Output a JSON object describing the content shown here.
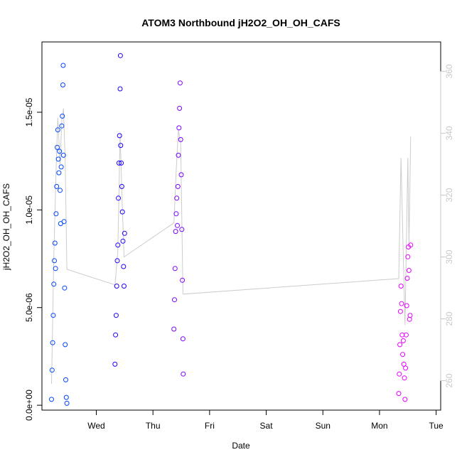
{
  "chart_data": {
    "type": "scatter",
    "title": "ATOM3 Northbound jH2O2_OH_OH_CAFS",
    "xlabel": "Date",
    "ylabel": "jH2O2_OH_OH_CAFS",
    "x_ticks": [
      "Wed",
      "Thu",
      "Fri",
      "Sat",
      "Sun",
      "Mon",
      "Tue"
    ],
    "x_tick_days": [
      1,
      2,
      3,
      4,
      5,
      6,
      7
    ],
    "xlim_days": [
      0.04,
      7.08
    ],
    "ylim": [
      -2.5e-07,
      1.86e-05
    ],
    "y_ticks": [
      0,
      5e-06,
      1e-05,
      1.5e-05
    ],
    "y_tick_labels": [
      "0.0e+00",
      "5.0e-06",
      "1.0e-05",
      "1.5e-05"
    ],
    "y2_ticks": [
      260,
      280,
      300,
      320,
      340,
      360
    ],
    "y2_lim": [
      250.5,
      369.5
    ],
    "y2_color": "#c8c8c8",
    "grid": false,
    "series": [
      {
        "color": "#0044ff",
        "points": [
          [
            0.21,
            3e-07
          ],
          [
            0.22,
            1.8e-06
          ],
          [
            0.23,
            3.2e-06
          ],
          [
            0.24,
            4.6e-06
          ],
          [
            0.25,
            6.2e-06
          ],
          [
            0.26,
            7.4e-06
          ],
          [
            0.27,
            8.3e-06
          ],
          [
            0.28,
            7e-06
          ],
          [
            0.29,
            9.8e-06
          ],
          [
            0.3,
            1.12e-05
          ],
          [
            0.31,
            1.32e-05
          ],
          [
            0.32,
            1.41e-05
          ],
          [
            0.33,
            1.26e-05
          ],
          [
            0.34,
            1.19e-05
          ],
          [
            0.35,
            1.3e-05
          ],
          [
            0.36,
            1.1e-05
          ],
          [
            0.37,
            9.3e-06
          ],
          [
            0.38,
            1.22e-05
          ],
          [
            0.39,
            1.43e-05
          ],
          [
            0.4,
            1.48e-05
          ],
          [
            0.41,
            1.64e-05
          ],
          [
            0.415,
            1.74e-05
          ],
          [
            0.42,
            1.28e-05
          ],
          [
            0.43,
            9.4e-06
          ],
          [
            0.44,
            6e-06
          ],
          [
            0.45,
            3.1e-06
          ],
          [
            0.46,
            1.3e-06
          ],
          [
            0.47,
            4e-07
          ],
          [
            0.48,
            1e-07
          ]
        ]
      },
      {
        "color": "#1a00ff",
        "points": [
          [
            1.33,
            2.1e-06
          ],
          [
            1.34,
            3.6e-06
          ],
          [
            1.35,
            4.6e-06
          ],
          [
            1.36,
            6.1e-06
          ],
          [
            1.37,
            7.4e-06
          ],
          [
            1.38,
            8.2e-06
          ],
          [
            1.39,
            1.06e-05
          ],
          [
            1.4,
            1.24e-05
          ],
          [
            1.41,
            1.38e-05
          ],
          [
            1.42,
            1.62e-05
          ],
          [
            1.425,
            1.79e-05
          ],
          [
            1.43,
            1.33e-05
          ],
          [
            1.44,
            1.24e-05
          ],
          [
            1.45,
            1.12e-05
          ],
          [
            1.46,
            9.9e-06
          ],
          [
            1.47,
            8.4e-06
          ],
          [
            1.48,
            7.1e-06
          ],
          [
            1.49,
            6.1e-06
          ],
          [
            1.5,
            8.8e-06
          ]
        ]
      },
      {
        "color": "#7a00ff",
        "points": [
          [
            2.37,
            3.9e-06
          ],
          [
            2.38,
            5.4e-06
          ],
          [
            2.39,
            7e-06
          ],
          [
            2.4,
            8.9e-06
          ],
          [
            2.41,
            9.8e-06
          ],
          [
            2.42,
            1.06e-05
          ],
          [
            2.43,
            9.2e-06
          ],
          [
            2.44,
            1.12e-05
          ],
          [
            2.45,
            1.28e-05
          ],
          [
            2.46,
            1.42e-05
          ],
          [
            2.47,
            1.52e-05
          ],
          [
            2.48,
            1.65e-05
          ],
          [
            2.49,
            1.36e-05
          ],
          [
            2.5,
            1.18e-05
          ],
          [
            2.51,
            9e-06
          ],
          [
            2.52,
            6.4e-06
          ],
          [
            2.53,
            3.4e-06
          ],
          [
            2.535,
            1.6e-06
          ]
        ]
      },
      {
        "color": "#e600ff",
        "points": [
          [
            6.34,
            6e-07
          ],
          [
            6.35,
            1.6e-06
          ],
          [
            6.36,
            3.1e-06
          ],
          [
            6.37,
            4.8e-06
          ],
          [
            6.38,
            6.1e-06
          ],
          [
            6.39,
            5.2e-06
          ],
          [
            6.4,
            3.6e-06
          ],
          [
            6.41,
            2.6e-06
          ],
          [
            6.42,
            3.3e-06
          ],
          [
            6.43,
            2.1e-06
          ],
          [
            6.44,
            1.4e-06
          ],
          [
            6.45,
            3e-07
          ],
          [
            6.46,
            1.9e-06
          ],
          [
            6.47,
            3.6e-06
          ],
          [
            6.48,
            5.1e-06
          ],
          [
            6.49,
            6.5e-06
          ],
          [
            6.5,
            7.6e-06
          ],
          [
            6.51,
            8.1e-06
          ],
          [
            6.52,
            6.9e-06
          ],
          [
            6.53,
            4.4e-06
          ],
          [
            6.54,
            4.6e-06
          ],
          [
            6.55,
            8.2e-06
          ]
        ]
      }
    ],
    "secondary_line": {
      "color": "#cccccc",
      "points": [
        [
          0.21,
          259
        ],
        [
          0.25,
          300
        ],
        [
          0.29,
          328
        ],
        [
          0.32,
          345
        ],
        [
          0.36,
          330
        ],
        [
          0.39,
          344
        ],
        [
          0.42,
          348
        ],
        [
          0.45,
          331
        ],
        [
          0.48,
          296
        ],
        [
          1.33,
          291
        ],
        [
          1.38,
          302
        ],
        [
          1.42,
          340
        ],
        [
          1.45,
          321
        ],
        [
          1.49,
          300
        ],
        [
          2.37,
          311
        ],
        [
          2.41,
          328
        ],
        [
          2.45,
          341
        ],
        [
          2.49,
          337
        ],
        [
          2.53,
          288
        ],
        [
          6.34,
          293
        ],
        [
          6.38,
          332
        ],
        [
          6.42,
          300
        ],
        [
          6.45,
          278
        ],
        [
          6.5,
          332
        ],
        [
          6.52,
          304
        ],
        [
          6.55,
          339
        ]
      ]
    }
  }
}
